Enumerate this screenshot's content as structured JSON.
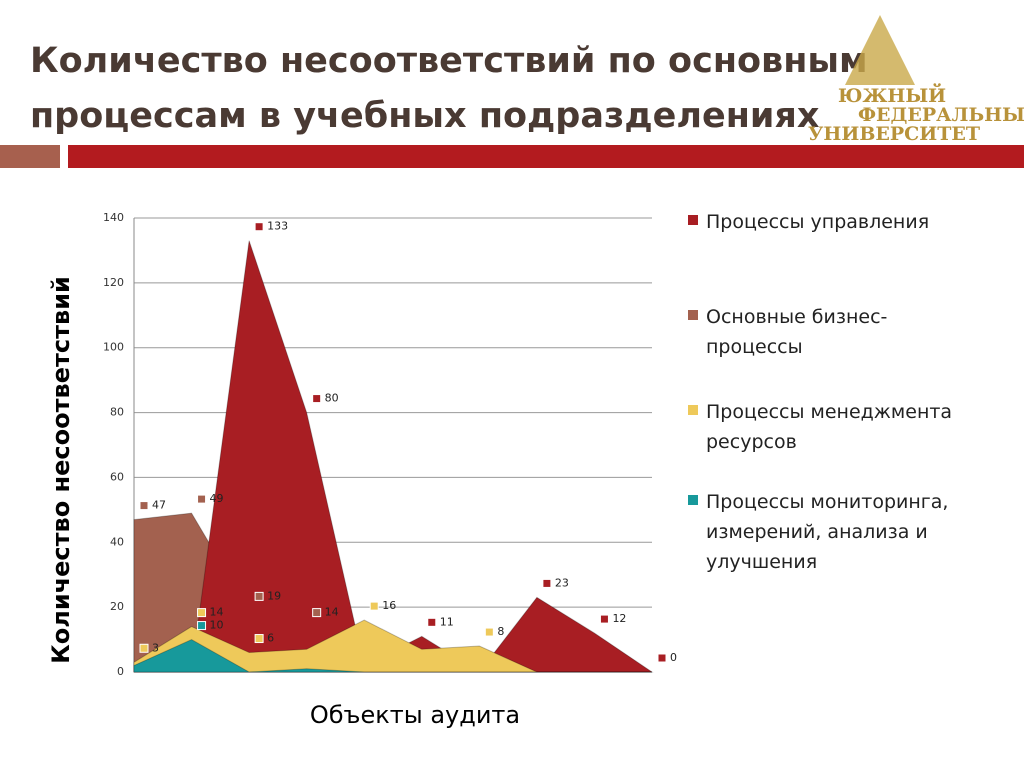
{
  "header": {
    "title_lines": [
      "Количество несоответствий по основным",
      "процессам в учебных подразделениях"
    ],
    "logo_lines": [
      "ЮЖНЫЙ",
      "ФЕДЕРАЛЬНЫЙ",
      "УНИВЕРСИТЕТ"
    ]
  },
  "chart_data": {
    "type": "area",
    "y_label": "Количество несоответствий",
    "x_label": "Объекты аудита",
    "categories": [
      null,
      null,
      null,
      null,
      null,
      null,
      null,
      null,
      null,
      null
    ],
    "ylim": [
      0,
      140
    ],
    "yticks": [
      0,
      20,
      40,
      60,
      80,
      100,
      120,
      140
    ],
    "series": [
      {
        "name": "Основные бизнес-процессы",
        "color": "#a3614f",
        "values": [
          47,
          49,
          19,
          14,
          0,
          0,
          0,
          0,
          0,
          0
        ],
        "value_labels": [
          "47",
          "49",
          "19",
          "14",
          null,
          null,
          null,
          null,
          null,
          null
        ]
      },
      {
        "name": "Процессы управления",
        "color": "#a81e23",
        "values": [
          0,
          0,
          133,
          80,
          2,
          11,
          0,
          23,
          12,
          0
        ],
        "value_labels": [
          null,
          null,
          "133",
          "80",
          null,
          "11",
          null,
          "23",
          "12",
          "0"
        ]
      },
      {
        "name": "Процессы менеджмента ресурсов",
        "color": "#eec95a",
        "values": [
          3,
          14,
          6,
          7,
          16,
          7,
          8,
          0,
          0,
          0
        ],
        "value_labels": [
          "3",
          "14",
          "6",
          null,
          "16",
          null,
          "8",
          null,
          null,
          null
        ]
      },
      {
        "name": "Процессы мониторинга, измерений, анализа и улучшения",
        "color": "#17999b",
        "values": [
          2,
          10,
          0,
          1,
          0,
          0,
          0,
          0,
          0,
          0
        ],
        "value_labels": [
          null,
          "10",
          null,
          null,
          null,
          null,
          null,
          null,
          null,
          null
        ]
      }
    ],
    "legend_order": [
      1,
      0,
      2,
      3
    ]
  }
}
